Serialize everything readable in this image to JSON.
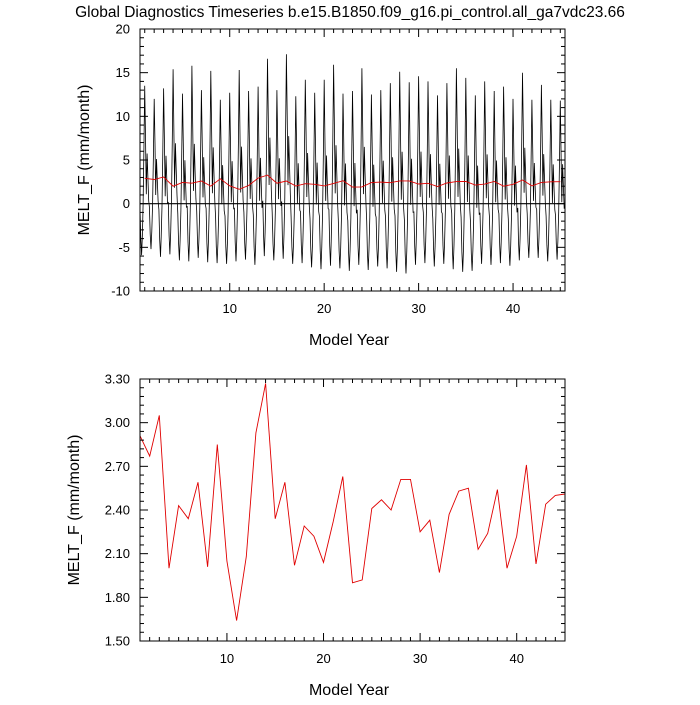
{
  "title": "Global Diagnostics Timeseries b.e15.B1850.f09_g16.pi_control.all_ga7vdc23.66",
  "colors": {
    "monthly": "#000000",
    "annual": "#e00000",
    "zero_line": "#000000",
    "frame": "#000000"
  },
  "chart_data": [
    {
      "type": "line",
      "xlabel": "Model Year",
      "ylabel": "MELT_F (mm/month)",
      "xlim": [
        0.5,
        45.5
      ],
      "ylim": [
        -10,
        20
      ],
      "x_ticks": [
        "10",
        "20",
        "30",
        "40"
      ],
      "y_ticks": [
        "-10",
        "-5",
        "0",
        "5",
        "10",
        "15",
        "20"
      ],
      "reference_line_y": 0,
      "series": [
        {
          "role": "monthly",
          "x_start": 0.5,
          "x_step": 0.08333,
          "peaks": [
            13.5,
            12.0,
            13.2,
            15.4,
            12.6,
            15.8,
            13.0,
            15.2,
            11.9,
            12.7,
            15.3,
            12.9,
            13.4,
            16.6,
            13.0,
            17.1,
            12.3,
            14.2,
            12.7,
            14.2,
            15.9,
            12.6,
            12.9,
            15.5,
            12.5,
            13.0,
            13.8,
            15.1,
            13.9,
            14.6,
            14.0,
            12.4,
            13.8,
            15.5,
            14.4,
            12.4,
            14.0,
            12.9,
            13.4,
            12.0,
            15.0,
            11.9,
            13.6,
            11.9,
            11.8
          ],
          "troughs": [
            -5.9,
            -5.2,
            -6.1,
            -5.8,
            -6.5,
            -6.6,
            -6.2,
            -6.7,
            -6.8,
            -6.9,
            -6.6,
            -6.4,
            -7.0,
            -6.0,
            -6.5,
            -6.3,
            -6.9,
            -6.8,
            -7.3,
            -7.5,
            -7.1,
            -7.4,
            -7.7,
            -7.0,
            -7.6,
            -7.2,
            -7.4,
            -7.8,
            -8.0,
            -7.0,
            -6.8,
            -7.2,
            -6.9,
            -7.5,
            -7.8,
            -7.7,
            -6.9,
            -7.0,
            -6.8,
            -7.1,
            -6.5,
            -6.2,
            -6.2,
            -6.6,
            -6.4
          ]
        },
        {
          "role": "annual",
          "x": [
            1,
            2,
            3,
            4,
            5,
            6,
            7,
            8,
            9,
            10,
            11,
            12,
            13,
            14,
            15,
            16,
            17,
            18,
            19,
            20,
            21,
            22,
            23,
            24,
            25,
            26,
            27,
            28,
            29,
            30,
            31,
            32,
            33,
            34,
            35,
            36,
            37,
            38,
            39,
            40,
            41,
            42,
            43,
            44,
            45
          ],
          "y": [
            2.91,
            2.77,
            3.05,
            2.0,
            2.43,
            2.34,
            2.59,
            2.01,
            2.85,
            2.05,
            1.64,
            2.08,
            2.93,
            3.27,
            2.34,
            2.59,
            2.02,
            2.29,
            2.22,
            2.04,
            2.32,
            2.63,
            1.9,
            1.92,
            2.41,
            2.47,
            2.4,
            2.61,
            2.61,
            2.25,
            2.33,
            1.97,
            2.37,
            2.53,
            2.55,
            2.13,
            2.24,
            2.54,
            2.0,
            2.22,
            2.71,
            2.03,
            2.44,
            2.5,
            2.51
          ]
        }
      ]
    },
    {
      "type": "line",
      "xlabel": "Model Year",
      "ylabel": "MELT_F (mm/month)",
      "xlim": [
        1,
        45
      ],
      "ylim": [
        1.5,
        3.3
      ],
      "x_ticks": [
        "10",
        "20",
        "30",
        "40"
      ],
      "y_ticks": [
        "1.50",
        "1.80",
        "2.10",
        "2.40",
        "2.70",
        "3.00",
        "3.30"
      ],
      "series": [
        {
          "role": "annual",
          "x": [
            1,
            2,
            3,
            4,
            5,
            6,
            7,
            8,
            9,
            10,
            11,
            12,
            13,
            14,
            15,
            16,
            17,
            18,
            19,
            20,
            21,
            22,
            23,
            24,
            25,
            26,
            27,
            28,
            29,
            30,
            31,
            32,
            33,
            34,
            35,
            36,
            37,
            38,
            39,
            40,
            41,
            42,
            43,
            44,
            45
          ],
          "y": [
            2.91,
            2.77,
            3.05,
            2.0,
            2.43,
            2.34,
            2.59,
            2.01,
            2.85,
            2.05,
            1.64,
            2.08,
            2.93,
            3.27,
            2.34,
            2.59,
            2.02,
            2.29,
            2.22,
            2.04,
            2.32,
            2.63,
            1.9,
            1.92,
            2.41,
            2.47,
            2.4,
            2.61,
            2.61,
            2.25,
            2.33,
            1.97,
            2.37,
            2.53,
            2.55,
            2.13,
            2.24,
            2.54,
            2.0,
            2.22,
            2.71,
            2.03,
            2.44,
            2.5,
            2.51
          ]
        }
      ]
    }
  ]
}
